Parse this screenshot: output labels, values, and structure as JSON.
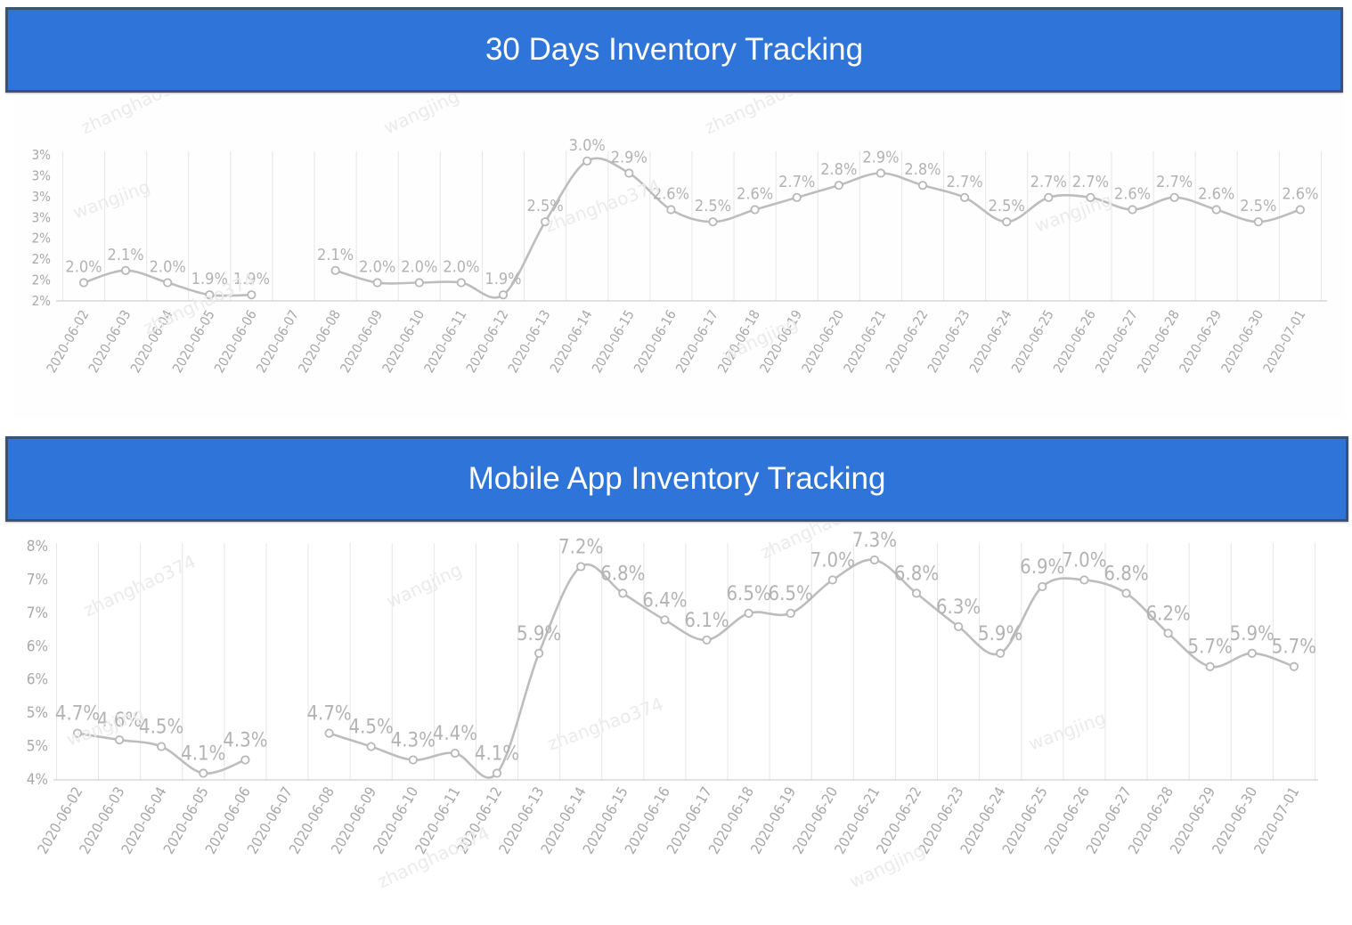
{
  "charts_page": {
    "watermark_texts": [
      "zhanghao374",
      "wangjing"
    ]
  },
  "chart_data": [
    {
      "type": "line",
      "title": "30 Days Inventory Tracking",
      "categories": [
        "2020-06-02",
        "2020-06-03",
        "2020-06-04",
        "2020-06-05",
        "2020-06-06",
        "2020-06-07",
        "2020-06-08",
        "2020-06-09",
        "2020-06-10",
        "2020-06-11",
        "2020-06-12",
        "2020-06-13",
        "2020-06-14",
        "2020-06-15",
        "2020-06-16",
        "2020-06-17",
        "2020-06-18",
        "2020-06-19",
        "2020-06-20",
        "2020-06-21",
        "2020-06-22",
        "2020-06-23",
        "2020-06-24",
        "2020-06-25",
        "2020-06-26",
        "2020-06-27",
        "2020-06-28",
        "2020-06-29",
        "2020-06-30",
        "2020-07-01"
      ],
      "values": [
        2.0,
        2.1,
        2.0,
        1.9,
        1.9,
        null,
        2.1,
        2.0,
        2.0,
        2.0,
        1.9,
        2.5,
        3.0,
        2.9,
        2.6,
        2.5,
        2.6,
        2.7,
        2.8,
        2.9,
        2.8,
        2.7,
        2.5,
        2.7,
        2.7,
        2.6,
        2.7,
        2.6,
        2.5,
        2.6
      ],
      "data_labels": [
        "2.0%",
        "2.1%",
        "2.0%",
        "1.9%",
        "1.9%",
        "",
        "2.1%",
        "2.0%",
        "2.0%",
        "2.0%",
        "1.9%",
        "2.5%",
        "3.0%",
        "2.9%",
        "2.6%",
        "2.5%",
        "2.6%",
        "2.7%",
        "2.8%",
        "2.9%",
        "2.8%",
        "2.7%",
        "2.5%",
        "2.7%",
        "2.7%",
        "2.6%",
        "2.7%",
        "2.6%",
        "2.5%",
        "2.6%"
      ],
      "y_tick_labels": [
        "2%",
        "2%",
        "2%",
        "2%",
        "3%",
        "3%",
        "3%",
        "3%"
      ],
      "ylim": [
        1.85,
        3.05
      ],
      "grid": "vertical",
      "line_color": "#bdbdbd"
    },
    {
      "type": "line",
      "title": "Mobile App Inventory Tracking",
      "categories": [
        "2020-06-02",
        "2020-06-03",
        "2020-06-04",
        "2020-06-05",
        "2020-06-06",
        "2020-06-07",
        "2020-06-08",
        "2020-06-09",
        "2020-06-10",
        "2020-06-11",
        "2020-06-12",
        "2020-06-13",
        "2020-06-14",
        "2020-06-15",
        "2020-06-16",
        "2020-06-17",
        "2020-06-18",
        "2020-06-19",
        "2020-06-20",
        "2020-06-21",
        "2020-06-22",
        "2020-06-23",
        "2020-06-24",
        "2020-06-25",
        "2020-06-26",
        "2020-06-27",
        "2020-06-28",
        "2020-06-29",
        "2020-06-30",
        "2020-07-01"
      ],
      "values": [
        4.7,
        4.6,
        4.5,
        4.1,
        4.3,
        null,
        4.7,
        4.5,
        4.3,
        4.4,
        4.1,
        5.9,
        7.2,
        6.8,
        6.4,
        6.1,
        6.5,
        6.5,
        7.0,
        7.3,
        6.8,
        6.3,
        5.9,
        6.9,
        7.0,
        6.8,
        6.2,
        5.7,
        5.9,
        5.7
      ],
      "data_labels": [
        "4.7%",
        "4.6%",
        "4.5%",
        "4.1%",
        "4.3%",
        "",
        "4.7%",
        "4.5%",
        "4.3%",
        "4.4%",
        "4.1%",
        "5.9%",
        "7.2%",
        "6.8%",
        "6.4%",
        "6.1%",
        "6.5%",
        "6.5%",
        "7.0%",
        "7.3%",
        "6.8%",
        "6.3%",
        "5.9%",
        "6.9%",
        "7.0%",
        "6.8%",
        "6.2%",
        "5.7%",
        "5.9%",
        "5.7%"
      ],
      "y_tick_labels": [
        "4%",
        "5%",
        "5%",
        "6%",
        "6%",
        "7%",
        "7%",
        "8%"
      ],
      "ylim": [
        4.0,
        7.5
      ],
      "grid": "vertical",
      "line_color": "#bdbdbd"
    }
  ]
}
